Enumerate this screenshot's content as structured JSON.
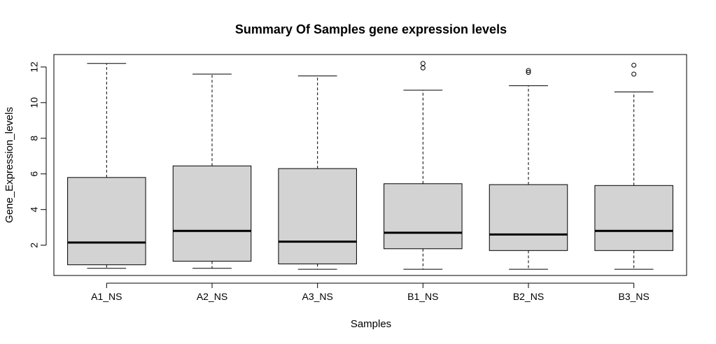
{
  "chart_data": {
    "type": "boxplot",
    "title": "Summary Of Samples gene expression levels",
    "xlabel": "Samples",
    "ylabel": "Gene_Expression_levels",
    "ylim": [
      0.3,
      12.7
    ],
    "yticks": [
      2,
      4,
      6,
      8,
      10,
      12
    ],
    "grid": false,
    "box_fill": "#d3d3d3",
    "line_color": "#000000",
    "categories": [
      "A1_NS",
      "A2_NS",
      "A3_NS",
      "B1_NS",
      "B2_NS",
      "B3_NS"
    ],
    "boxes": [
      {
        "min": 0.7,
        "q1": 0.9,
        "median": 2.15,
        "q3": 5.8,
        "max": 12.2,
        "outliers": []
      },
      {
        "min": 0.7,
        "q1": 1.1,
        "median": 2.8,
        "q3": 6.45,
        "max": 11.6,
        "outliers": []
      },
      {
        "min": 0.65,
        "q1": 0.95,
        "median": 2.2,
        "q3": 6.3,
        "max": 11.5,
        "outliers": []
      },
      {
        "min": 0.65,
        "q1": 1.8,
        "median": 2.7,
        "q3": 5.45,
        "max": 10.7,
        "outliers": [
          12.2,
          11.95
        ]
      },
      {
        "min": 0.65,
        "q1": 1.7,
        "median": 2.6,
        "q3": 5.4,
        "max": 10.95,
        "outliers": [
          11.8,
          11.7
        ]
      },
      {
        "min": 0.65,
        "q1": 1.7,
        "median": 2.8,
        "q3": 5.35,
        "max": 10.6,
        "outliers": [
          12.1,
          11.6
        ]
      }
    ]
  }
}
